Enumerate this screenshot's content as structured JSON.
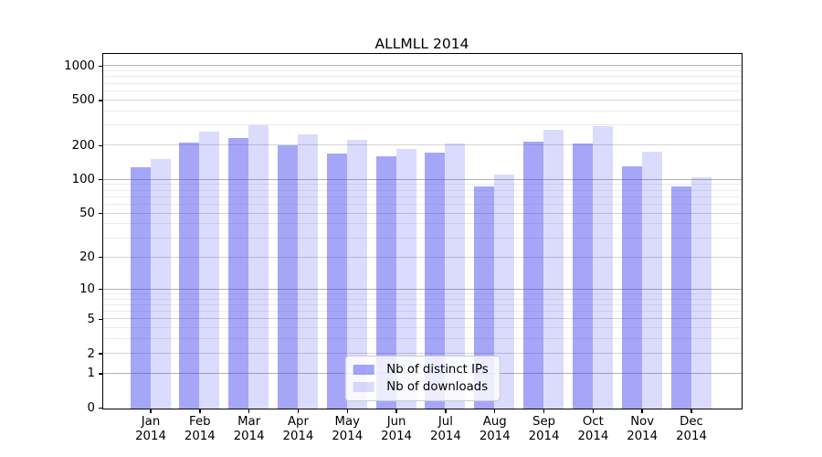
{
  "chart_data": {
    "type": "bar",
    "title": "ALLMLL 2014",
    "categories": [
      "Jan",
      "Feb",
      "Mar",
      "Apr",
      "May",
      "Jun",
      "Jul",
      "Aug",
      "Sep",
      "Oct",
      "Nov",
      "Dec"
    ],
    "xtick_year": "2014",
    "series": [
      {
        "name": "Nb of distinct IPs",
        "color": "rgba(58,58,242,0.45)",
        "values": [
          130,
          215,
          235,
          202,
          172,
          163,
          176,
          88,
          220,
          212,
          133,
          88
        ]
      },
      {
        "name": "Nb of downloads",
        "color": "rgba(58,58,242,0.18)",
        "values": [
          155,
          268,
          303,
          254,
          228,
          190,
          212,
          112,
          277,
          298,
          178,
          107
        ]
      }
    ],
    "yscale": "log1p",
    "ylim": [
      0,
      1270
    ],
    "ytick_labels": [
      "0",
      "1",
      "2",
      "5",
      "10",
      "20",
      "50",
      "100",
      "200",
      "500",
      "1000"
    ],
    "yticks_labeled": [
      0,
      1,
      2,
      5,
      10,
      20,
      50,
      100,
      200,
      500,
      1000
    ],
    "yticks_decade": [
      1,
      10,
      100,
      1000
    ],
    "yticks_minor": [
      3,
      4,
      6,
      7,
      8,
      9,
      30,
      40,
      60,
      70,
      80,
      90,
      300,
      400,
      600,
      700,
      800,
      900
    ],
    "grid": true,
    "legend_position": "lower center",
    "colors": {
      "background": "#ffffff",
      "spine": "#000000",
      "grid_decade": "#b3b3b3",
      "grid_labeled": "#d4d4d4",
      "grid_minor": "#ebebeb",
      "tick": "#000000",
      "text": "#000000",
      "legend_border": "#cccccc",
      "legend_bg": "rgba(255,255,255,0.8)"
    }
  }
}
